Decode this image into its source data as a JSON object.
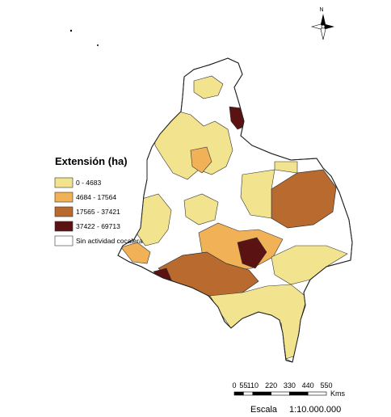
{
  "legend": {
    "title": "Extensión (ha)",
    "classes": [
      {
        "label": "0 - 4683",
        "color": "#f2e38e"
      },
      {
        "label": "4684 - 17564",
        "color": "#f1b156"
      },
      {
        "label": "17565 - 37421",
        "color": "#b86a2f"
      },
      {
        "label": "37422 - 69713",
        "color": "#5a1212"
      },
      {
        "label": "Sin actividad cocalera",
        "color": "#ffffff"
      }
    ]
  },
  "north_arrow": {
    "label": "N",
    "icon": "compass-rose-icon"
  },
  "scale_bar": {
    "ticks": [
      "0",
      "55",
      "110",
      "220",
      "330",
      "440",
      "550"
    ],
    "unit": "Kms",
    "escala_label": "Escala",
    "ratio": "1:10.000.000"
  }
}
